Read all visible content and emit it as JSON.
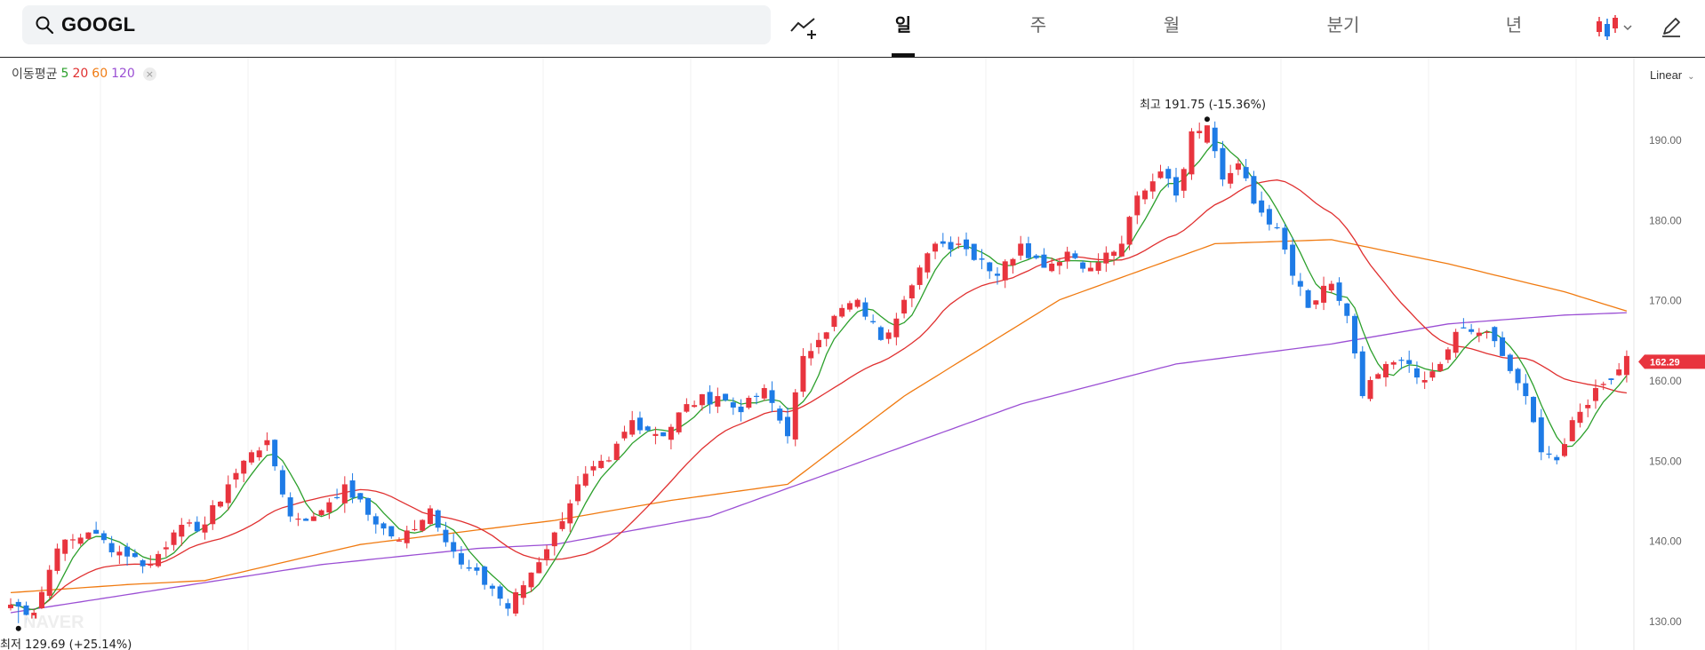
{
  "search": {
    "value": "GOOGL"
  },
  "tabs": [
    {
      "label": "일",
      "active": true
    },
    {
      "label": "주",
      "active": false
    },
    {
      "label": "월",
      "active": false
    },
    {
      "label": "분기",
      "active": false
    },
    {
      "label": "년",
      "active": false
    }
  ],
  "toolbar": {
    "icons": [
      "trend-add-icon",
      "candlestick-icon",
      "chevron-down-icon",
      "pencil-icon"
    ]
  },
  "moving_average": {
    "label": "이동평균",
    "periods": [
      {
        "value": "5",
        "color": "#2ca02c"
      },
      {
        "value": "20",
        "color": "#e03030"
      },
      {
        "value": "60",
        "color": "#f07a10"
      },
      {
        "value": "120",
        "color": "#9b4fd4"
      }
    ],
    "remove_icon": "×"
  },
  "scale": {
    "label": "Linear"
  },
  "colors": {
    "up": "#e8343e",
    "down": "#1e7be6",
    "ma5": "#2ca02c",
    "ma20": "#e03030",
    "ma60": "#f07a10",
    "ma120": "#9b4fd4",
    "price_tag": "#e8343e"
  },
  "watermark": "NAVER",
  "chart_data": {
    "type": "candlestick",
    "y_range": [
      128,
      196
    ],
    "y_ticks": [
      "130.00",
      "140.00",
      "150.00",
      "160.00",
      "170.00",
      "180.00",
      "190.00"
    ],
    "current_price": "162.29",
    "annotations": {
      "high": {
        "label": "최고",
        "value": "191.75 (-15.36%)",
        "index": 154,
        "price": 191.75
      },
      "low": {
        "label": "최저",
        "value": "129.69 (+25.14%)",
        "index": 1,
        "price": 129.69
      }
    },
    "anchors": [
      [
        0,
        132
      ],
      [
        3,
        131
      ],
      [
        6,
        139
      ],
      [
        10,
        141
      ],
      [
        15,
        138
      ],
      [
        18,
        137
      ],
      [
        21,
        141
      ],
      [
        25,
        142
      ],
      [
        28,
        147
      ],
      [
        31,
        151
      ],
      [
        33,
        152.5
      ],
      [
        36,
        143
      ],
      [
        39,
        143
      ],
      [
        43,
        147
      ],
      [
        47,
        142
      ],
      [
        50,
        140
      ],
      [
        54,
        144
      ],
      [
        58,
        137
      ],
      [
        62,
        134
      ],
      [
        64,
        131.5
      ],
      [
        67,
        136
      ],
      [
        70,
        141
      ],
      [
        73,
        147
      ],
      [
        77,
        150
      ],
      [
        80,
        155
      ],
      [
        84,
        153
      ],
      [
        87,
        157
      ],
      [
        91,
        158
      ],
      [
        94,
        156
      ],
      [
        97,
        159
      ],
      [
        100,
        153
      ],
      [
        102,
        163
      ],
      [
        104,
        165
      ],
      [
        106,
        168
      ],
      [
        109,
        170
      ],
      [
        112,
        165
      ],
      [
        115,
        170
      ],
      [
        119,
        177
      ],
      [
        122,
        177
      ],
      [
        125,
        175
      ],
      [
        127,
        173
      ],
      [
        130,
        177
      ],
      [
        133,
        174
      ],
      [
        136,
        176
      ],
      [
        139,
        174
      ],
      [
        143,
        177
      ],
      [
        145,
        183
      ],
      [
        148,
        186
      ],
      [
        150,
        183
      ],
      [
        152,
        191
      ],
      [
        154,
        191.75
      ],
      [
        156,
        185
      ],
      [
        158,
        187
      ],
      [
        160,
        182
      ],
      [
        163,
        179
      ],
      [
        165,
        173
      ],
      [
        167,
        169
      ],
      [
        170,
        172
      ],
      [
        172,
        168
      ],
      [
        174,
        158
      ],
      [
        177,
        162
      ],
      [
        180,
        162
      ],
      [
        182,
        160
      ],
      [
        184,
        162
      ],
      [
        186,
        166
      ],
      [
        188,
        166
      ],
      [
        190,
        166
      ],
      [
        192,
        163
      ],
      [
        195,
        158
      ],
      [
        197,
        151
      ],
      [
        199,
        150
      ],
      [
        201,
        155
      ],
      [
        204,
        159
      ],
      [
        206,
        160
      ],
      [
        208,
        163
      ]
    ],
    "ma60_points": [
      [
        0,
        133.5
      ],
      [
        15,
        134.5
      ],
      [
        25,
        135
      ],
      [
        45,
        139.5
      ],
      [
        70,
        142.5
      ],
      [
        85,
        145
      ],
      [
        100,
        147
      ],
      [
        115,
        158
      ],
      [
        135,
        170
      ],
      [
        155,
        177
      ],
      [
        170,
        177.5
      ],
      [
        185,
        174.5
      ],
      [
        200,
        171
      ],
      [
        208,
        168.6
      ]
    ],
    "ma120_points": [
      [
        0,
        131
      ],
      [
        20,
        134
      ],
      [
        40,
        137
      ],
      [
        60,
        139
      ],
      [
        70,
        139.5
      ],
      [
        90,
        143
      ],
      [
        110,
        150
      ],
      [
        130,
        157
      ],
      [
        150,
        162
      ],
      [
        170,
        164.5
      ],
      [
        185,
        167
      ],
      [
        200,
        168.1
      ],
      [
        208,
        168.4
      ]
    ]
  }
}
